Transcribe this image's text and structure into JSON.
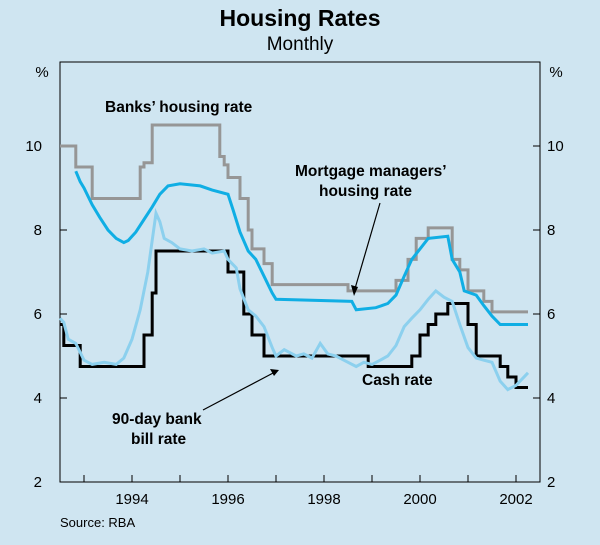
{
  "chart_data": {
    "type": "line",
    "title": "Housing Rates",
    "subtitle": "Monthly",
    "ylabel_left": "%",
    "ylabel_right": "%",
    "ylim": [
      2,
      12
    ],
    "yticks": [
      2,
      4,
      6,
      8,
      10
    ],
    "xlim": [
      1992.5,
      2002.5
    ],
    "xticks": [
      "1994",
      "1996",
      "1998",
      "2000",
      "2002"
    ],
    "source": "Source: RBA",
    "annotations": {
      "banks": "Banks’ housing rate",
      "mortgage_line1": "Mortgage managers’",
      "mortgage_line2": "housing rate",
      "cash": "Cash rate",
      "bill_line1": "90-day bank",
      "bill_line2": "bill rate"
    },
    "series": [
      {
        "name": "Banks’ housing rate",
        "color": "#969696",
        "step": true,
        "points": [
          [
            1992.5,
            10.0
          ],
          [
            1992.83,
            9.5
          ],
          [
            1993.17,
            8.75
          ],
          [
            1994.17,
            9.5
          ],
          [
            1994.25,
            9.6
          ],
          [
            1994.42,
            10.5
          ],
          [
            1995.83,
            9.75
          ],
          [
            1995.92,
            9.55
          ],
          [
            1996.0,
            9.25
          ],
          [
            1996.25,
            8.75
          ],
          [
            1996.42,
            8.0
          ],
          [
            1996.5,
            7.55
          ],
          [
            1996.75,
            7.2
          ],
          [
            1996.92,
            6.7
          ],
          [
            1998.5,
            6.55
          ],
          [
            1999.08,
            6.55
          ],
          [
            1999.5,
            6.8
          ],
          [
            1999.75,
            7.3
          ],
          [
            1999.92,
            7.8
          ],
          [
            2000.17,
            8.05
          ],
          [
            2000.67,
            7.3
          ],
          [
            2000.83,
            7.05
          ],
          [
            2001.0,
            6.55
          ],
          [
            2001.33,
            6.3
          ],
          [
            2001.5,
            6.05
          ],
          [
            2002.25,
            6.05
          ]
        ]
      },
      {
        "name": "Mortgage managers’ housing rate",
        "color": "#10aee4",
        "step": false,
        "points": [
          [
            1992.83,
            9.4
          ],
          [
            1992.92,
            9.15
          ],
          [
            1993.0,
            9.0
          ],
          [
            1993.17,
            8.6
          ],
          [
            1993.33,
            8.3
          ],
          [
            1993.5,
            8.0
          ],
          [
            1993.67,
            7.8
          ],
          [
            1993.83,
            7.7
          ],
          [
            1993.92,
            7.75
          ],
          [
            1994.08,
            7.95
          ],
          [
            1994.25,
            8.25
          ],
          [
            1994.42,
            8.55
          ],
          [
            1994.58,
            8.85
          ],
          [
            1994.75,
            9.05
          ],
          [
            1995.0,
            9.1
          ],
          [
            1995.42,
            9.05
          ],
          [
            1995.67,
            8.95
          ],
          [
            1996.0,
            8.85
          ],
          [
            1996.1,
            8.5
          ],
          [
            1996.25,
            7.95
          ],
          [
            1996.42,
            7.5
          ],
          [
            1996.58,
            7.3
          ],
          [
            1996.75,
            6.9
          ],
          [
            1996.92,
            6.5
          ],
          [
            1997.0,
            6.35
          ],
          [
            1998.58,
            6.3
          ],
          [
            1998.67,
            6.1
          ],
          [
            1999.08,
            6.15
          ],
          [
            1999.33,
            6.25
          ],
          [
            1999.5,
            6.45
          ],
          [
            1999.67,
            6.9
          ],
          [
            1999.83,
            7.3
          ],
          [
            2000.0,
            7.55
          ],
          [
            2000.17,
            7.8
          ],
          [
            2000.58,
            7.85
          ],
          [
            2000.67,
            7.3
          ],
          [
            2000.83,
            7.0
          ],
          [
            2000.92,
            6.55
          ],
          [
            2001.17,
            6.45
          ],
          [
            2001.33,
            6.2
          ],
          [
            2001.5,
            5.95
          ],
          [
            2001.67,
            5.75
          ],
          [
            2002.25,
            5.75
          ]
        ]
      },
      {
        "name": "Cash rate",
        "color": "#000000",
        "step": true,
        "points": [
          [
            1992.5,
            5.75
          ],
          [
            1992.58,
            5.25
          ],
          [
            1992.92,
            4.75
          ],
          [
            1994.17,
            4.75
          ],
          [
            1994.25,
            5.5
          ],
          [
            1994.42,
            6.5
          ],
          [
            1994.5,
            7.5
          ],
          [
            1995.92,
            7.5
          ],
          [
            1996.0,
            7.0
          ],
          [
            1996.33,
            6.0
          ],
          [
            1996.5,
            5.5
          ],
          [
            1996.75,
            5.0
          ],
          [
            1996.92,
            5.0
          ],
          [
            1998.0,
            5.0
          ],
          [
            1998.5,
            5.0
          ],
          [
            1998.92,
            4.75
          ],
          [
            1999.83,
            5.0
          ],
          [
            2000.0,
            5.5
          ],
          [
            2000.17,
            5.75
          ],
          [
            2000.33,
            6.0
          ],
          [
            2000.58,
            6.25
          ],
          [
            2001.0,
            5.75
          ],
          [
            2001.17,
            5.0
          ],
          [
            2001.33,
            5.0
          ],
          [
            2001.67,
            4.75
          ],
          [
            2001.83,
            4.5
          ],
          [
            2002.0,
            4.25
          ],
          [
            2002.25,
            4.25
          ]
        ]
      },
      {
        "name": "90-day bank bill rate",
        "color": "#8cd0ee",
        "step": false,
        "points": [
          [
            1992.5,
            5.9
          ],
          [
            1992.58,
            5.8
          ],
          [
            1992.67,
            5.4
          ],
          [
            1992.83,
            5.3
          ],
          [
            1993.0,
            4.9
          ],
          [
            1993.17,
            4.8
          ],
          [
            1993.42,
            4.85
          ],
          [
            1993.67,
            4.8
          ],
          [
            1993.83,
            4.95
          ],
          [
            1994.0,
            5.4
          ],
          [
            1994.17,
            6.1
          ],
          [
            1994.33,
            7.0
          ],
          [
            1994.5,
            8.4
          ],
          [
            1994.58,
            8.2
          ],
          [
            1994.67,
            7.8
          ],
          [
            1994.83,
            7.7
          ],
          [
            1995.0,
            7.55
          ],
          [
            1995.25,
            7.5
          ],
          [
            1995.5,
            7.55
          ],
          [
            1995.67,
            7.45
          ],
          [
            1995.92,
            7.5
          ],
          [
            1996.0,
            7.3
          ],
          [
            1996.17,
            7.1
          ],
          [
            1996.25,
            6.6
          ],
          [
            1996.42,
            6.1
          ],
          [
            1996.58,
            5.95
          ],
          [
            1996.75,
            5.7
          ],
          [
            1996.92,
            5.2
          ],
          [
            1997.0,
            5.0
          ],
          [
            1997.17,
            5.15
          ],
          [
            1997.42,
            5.0
          ],
          [
            1997.58,
            5.05
          ],
          [
            1997.75,
            4.95
          ],
          [
            1997.92,
            5.3
          ],
          [
            1998.08,
            5.05
          ],
          [
            1998.25,
            5.0
          ],
          [
            1998.5,
            4.85
          ],
          [
            1998.67,
            4.75
          ],
          [
            1998.83,
            4.85
          ],
          [
            1999.0,
            4.8
          ],
          [
            1999.17,
            4.9
          ],
          [
            1999.33,
            5.0
          ],
          [
            1999.5,
            5.25
          ],
          [
            1999.67,
            5.7
          ],
          [
            1999.83,
            5.9
          ],
          [
            2000.0,
            6.1
          ],
          [
            2000.17,
            6.35
          ],
          [
            2000.33,
            6.55
          ],
          [
            2000.5,
            6.4
          ],
          [
            2000.67,
            6.3
          ],
          [
            2000.83,
            5.75
          ],
          [
            2001.0,
            5.2
          ],
          [
            2001.17,
            4.95
          ],
          [
            2001.33,
            4.9
          ],
          [
            2001.5,
            4.85
          ],
          [
            2001.67,
            4.4
          ],
          [
            2001.83,
            4.2
          ],
          [
            2002.0,
            4.3
          ],
          [
            2002.25,
            4.6
          ]
        ]
      }
    ]
  }
}
